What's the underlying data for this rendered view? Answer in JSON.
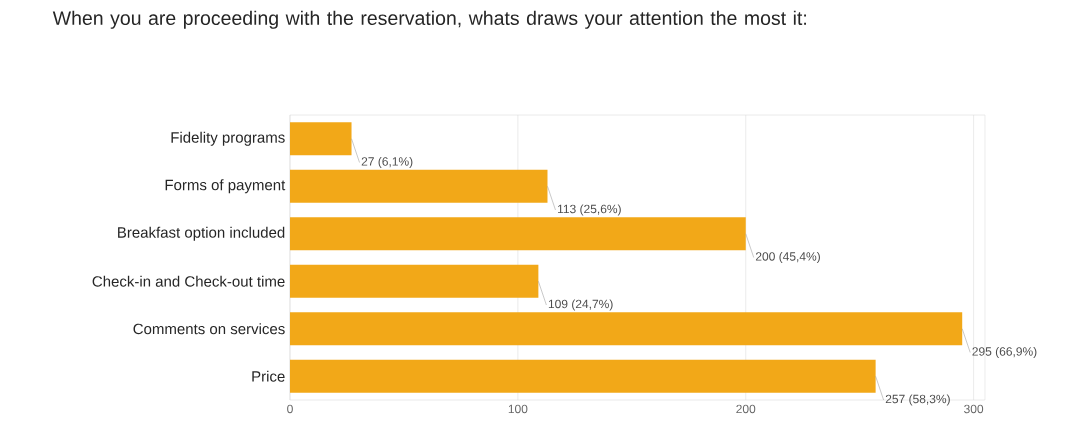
{
  "chart_data": {
    "type": "bar",
    "orientation": "horizontal",
    "title": "When you are proceeding with the reservation, whats draws your attention the most it:",
    "categories": [
      "Fidelity programs",
      "Forms of payment",
      "Breakfast option included",
      "Check-in and Check-out time",
      "Comments on services",
      "Price"
    ],
    "values": [
      27,
      113,
      200,
      109,
      295,
      257
    ],
    "value_labels": [
      "27 (6,1%)",
      "113 (25,6%)",
      "200 (45,4%)",
      "109 (24,7%)",
      "295 (66,9%)",
      "257 (58,3%)"
    ],
    "color": "#f2a818",
    "xlim": [
      0,
      305
    ],
    "xticks": [
      0,
      100,
      200,
      300
    ],
    "grid": "x"
  }
}
